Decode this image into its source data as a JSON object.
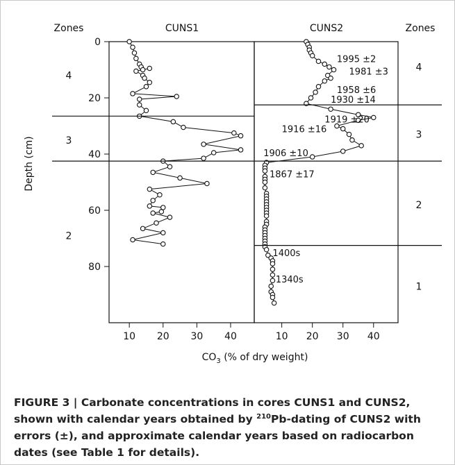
{
  "chart_data": {
    "type": "line",
    "ylabel": "Depth (cm)",
    "xlabel": "CO3 (% of dry weight)",
    "ylim": [
      0,
      100
    ],
    "yticks": [
      0,
      20,
      40,
      60,
      80
    ],
    "y_reversed": true,
    "marker": "open-circle",
    "zones_header": "Zones",
    "panels": [
      {
        "title": "CUNS1",
        "xlim": [
          4,
          47
        ],
        "xticks": [
          10,
          20,
          30,
          40
        ],
        "series": [
          {
            "x": [
              10,
              11,
              11.5,
              12,
              13,
              13.5,
              14,
              16,
              12,
              14,
              14.5,
              16,
              15,
              11,
              24,
              13,
              13,
              15,
              13,
              23,
              26,
              41,
              43,
              32,
              43,
              35,
              32,
              20,
              22,
              17,
              25,
              33,
              16,
              19,
              17,
              16,
              20,
              19.5,
              17,
              22,
              18,
              14,
              20,
              11,
              20
            ],
            "y": [
              0,
              2,
              4,
              6,
              8,
              9,
              10,
              9.5,
              10.5,
              12,
              13,
              14.5,
              16,
              18.5,
              19.5,
              20.5,
              22.5,
              24.5,
              26.5,
              28.5,
              30.5,
              32.5,
              33.5,
              36.5,
              38.5,
              39.5,
              41.5,
              42.5,
              44.5,
              46.5,
              48.5,
              50.5,
              52.5,
              54.5,
              56.5,
              58.5,
              59,
              60.5,
              61,
              62.5,
              64.5,
              66.5,
              68,
              70.5,
              72
            ]
          }
        ],
        "zones": [
          {
            "label": "4",
            "y": 12
          },
          {
            "label": "3",
            "y": 35
          },
          {
            "label": "2",
            "y": 69
          }
        ],
        "boundaries": [
          26.5,
          42.5
        ]
      },
      {
        "title": "CUNS2",
        "xlim": [
          1,
          48
        ],
        "xticks": [
          10,
          20,
          30,
          40
        ],
        "series": [
          {
            "x": [
              18,
              18.5,
              19,
              19,
              19.5,
              20,
              22,
              24,
              25.5,
              27,
              25,
              26,
              24,
              22,
              21,
              19.5,
              18,
              26,
              35,
              40,
              35,
              28,
              30,
              32,
              33,
              36,
              30,
              20,
              5,
              4.5,
              4.5,
              4.5,
              4.5,
              4.5,
              4.5,
              4.5,
              5,
              5,
              5,
              5,
              5,
              5,
              5,
              5,
              5,
              5,
              5,
              4.5,
              4.5,
              4.5,
              4.5,
              4.5,
              4.5,
              4.5,
              4.5,
              5,
              5.5,
              6.5,
              7,
              7,
              7,
              7,
              7,
              6.5,
              6.5,
              7,
              7,
              7.5
            ],
            "y": [
              0,
              1,
              2,
              3,
              4,
              5,
              7,
              8,
              9,
              10,
              12,
              13,
              14,
              16,
              18,
              20,
              22,
              24,
              26,
              27,
              28,
              30,
              31,
              33,
              35,
              37,
              39,
              41,
              43,
              44,
              45,
              46,
              48,
              49,
              50,
              52,
              54,
              55,
              56,
              57,
              58,
              59,
              60,
              61,
              62,
              64,
              65,
              66,
              67,
              68,
              69,
              70,
              71,
              72,
              73,
              74,
              76,
              77,
              78,
              79,
              81,
              83,
              85,
              87,
              89,
              90,
              91,
              93
            ]
          }
        ],
        "annotations": [
          {
            "text": "1995 ±2",
            "x": 28,
            "y": 6
          },
          {
            "text": "1981 ±3",
            "x": 32,
            "y": 10.5
          },
          {
            "text": "1958 ±6",
            "x": 28,
            "y": 17
          },
          {
            "text": "1930 ±14",
            "x": 26,
            "y": 20.5
          },
          {
            "text": "1919 ±20",
            "x": 24,
            "y": 27.5
          },
          {
            "text": "1916 ±16",
            "x": 10,
            "y": 31
          },
          {
            "text": "1906 ±10",
            "x": 4,
            "y": 39.5
          },
          {
            "text": "1867 ±17",
            "x": 6,
            "y": 47
          },
          {
            "text": "1400s",
            "x": 7,
            "y": 75
          },
          {
            "text": "1340s",
            "x": 8,
            "y": 84.5
          }
        ],
        "zones": [
          {
            "label": "4",
            "y": 9
          },
          {
            "label": "3",
            "y": 33
          },
          {
            "label": "2",
            "y": 58
          },
          {
            "label": "1",
            "y": 87
          }
        ],
        "boundaries": [
          22.5,
          42.5,
          72.5
        ]
      }
    ]
  },
  "caption": {
    "pre": "FIGURE 3 | Carbonate concentrations in cores CUNS1 and CUNS2, shown with calendar years obtained by ",
    "sup": "210",
    "post": "Pb-dating of CUNS2 with errors (±), and approximate calendar years based on radiocarbon dates (see Table 1 for details)."
  }
}
